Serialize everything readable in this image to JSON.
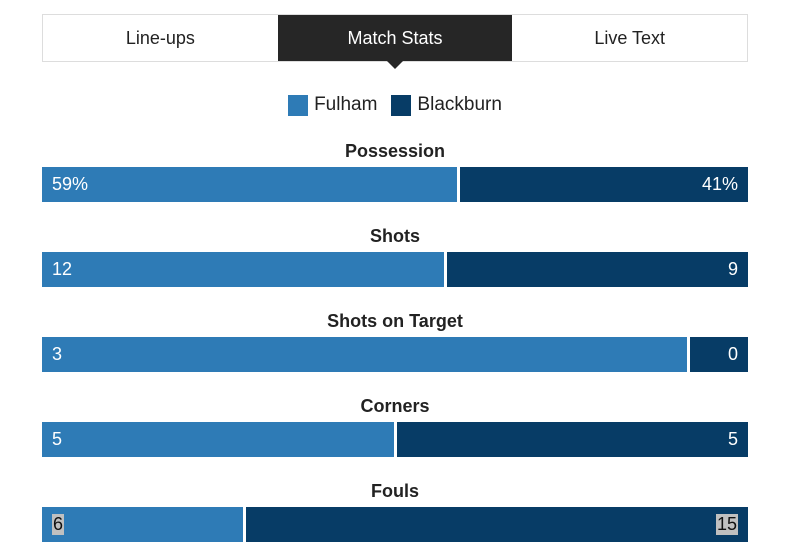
{
  "tabs": [
    {
      "label": "Line-ups",
      "active": false
    },
    {
      "label": "Match Stats",
      "active": true
    },
    {
      "label": "Live Text",
      "active": false
    }
  ],
  "colors": {
    "home": "#2e7bb6",
    "away": "#073c66"
  },
  "chart_data": {
    "type": "bar",
    "orientation": "horizontal-stacked",
    "legend": [
      "Fulham",
      "Blackburn"
    ],
    "legend_placement": "top",
    "series": [
      {
        "name": "Fulham"
      },
      {
        "name": "Blackburn"
      }
    ],
    "stats": [
      {
        "label": "Possession",
        "home": 59,
        "away": 41,
        "home_text": "59%",
        "away_text": "41%"
      },
      {
        "label": "Shots",
        "home": 12,
        "away": 9,
        "home_text": "12",
        "away_text": "9"
      },
      {
        "label": "Shots on Target",
        "home": 3,
        "away": 0,
        "home_text": "3",
        "away_text": "0"
      },
      {
        "label": "Corners",
        "home": 5,
        "away": 5,
        "home_text": "5",
        "away_text": "5"
      },
      {
        "label": "Fouls",
        "home": 6,
        "away": 15,
        "home_text": "6",
        "away_text": "15",
        "highlighted": true
      }
    ]
  }
}
